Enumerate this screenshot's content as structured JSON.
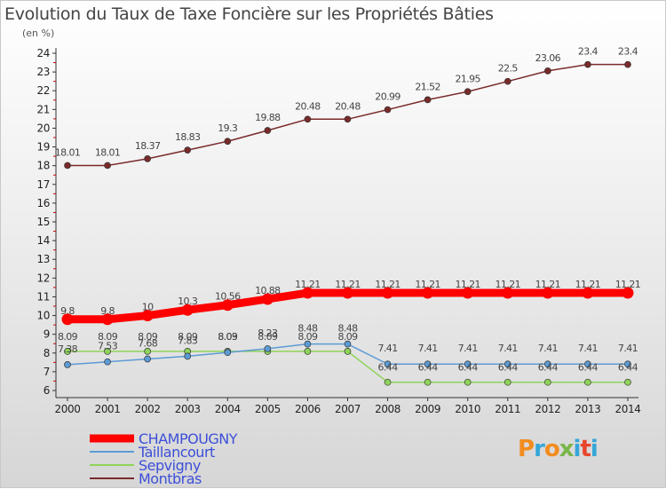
{
  "title": "Evolution du Taux de Taxe Foncière sur les Propriétés Bâties",
  "unit": "(en %)",
  "logo": {
    "text": "Proxiti",
    "colors": [
      "#f28c1e",
      "#35a6d8",
      "#f28c1e",
      "#7ab648",
      "#35a6d8",
      "#e8452c",
      "#35a6d8"
    ]
  },
  "chart_data": {
    "type": "line",
    "x": [
      "2000",
      "2001",
      "2002",
      "2003",
      "2004",
      "2005",
      "2006",
      "2007",
      "2008",
      "2009",
      "2010",
      "2011",
      "2012",
      "2013",
      "2014"
    ],
    "ylim": [
      6,
      24
    ],
    "yticks": [
      6,
      7,
      8,
      9,
      10,
      11,
      12,
      13,
      14,
      15,
      16,
      17,
      18,
      19,
      20,
      21,
      22,
      23,
      24
    ],
    "grid": false,
    "legend_position": "bottom-left",
    "series": [
      {
        "name": "CHAMPOUGNY",
        "color": "#ff0000",
        "values": [
          9.8,
          9.8,
          10,
          10.3,
          10.56,
          10.88,
          11.21,
          11.21,
          11.21,
          11.21,
          11.21,
          11.21,
          11.21,
          11.21,
          11.21
        ],
        "labels": [
          "9.8",
          "9.8",
          "10",
          "10.3",
          "10.56",
          "10.88",
          "11.21",
          "11.21",
          "11.21",
          "11.21",
          "11.21",
          "11.21",
          "11.21",
          "11.21",
          "11.21"
        ]
      },
      {
        "name": "Taillancourt",
        "color": "#5b9bd5",
        "values": [
          7.38,
          7.53,
          7.68,
          7.83,
          8.03,
          8.23,
          8.48,
          8.48,
          7.41,
          7.41,
          7.41,
          7.41,
          7.41,
          7.41,
          7.41
        ],
        "labels": [
          "7.38",
          "7.53",
          "7.68",
          "7.83",
          "8.03",
          "8.23",
          "8.48",
          "8.48",
          "7.41",
          "7.41",
          "7.41",
          "7.41",
          "7.41",
          "7.41",
          "7.41"
        ]
      },
      {
        "name": "Sepvigny",
        "color": "#8fd45a",
        "values": [
          8.09,
          8.09,
          8.09,
          8.09,
          8.09,
          8.09,
          8.09,
          8.09,
          6.44,
          6.44,
          6.44,
          6.44,
          6.44,
          6.44,
          6.44
        ],
        "labels": [
          "8.09",
          "8.09",
          "8.09",
          "8.09",
          "8.09",
          "8.09",
          "8.09",
          "8.09",
          "6.44",
          "6.44",
          "6.44",
          "6.44",
          "6.44",
          "6.44",
          "6.44"
        ]
      },
      {
        "name": "Montbras",
        "color": "#7a2a2a",
        "values": [
          18.01,
          18.01,
          18.37,
          18.83,
          19.3,
          19.88,
          20.48,
          20.48,
          20.99,
          21.52,
          21.95,
          22.5,
          23.06,
          23.4,
          23.4
        ],
        "labels": [
          "18.01",
          "18.01",
          "18.37",
          "18.83",
          "19.3",
          "19.88",
          "20.48",
          "20.48",
          "20.99",
          "21.52",
          "21.95",
          "22.5",
          "23.06",
          "23.4",
          "23.4"
        ]
      }
    ]
  }
}
